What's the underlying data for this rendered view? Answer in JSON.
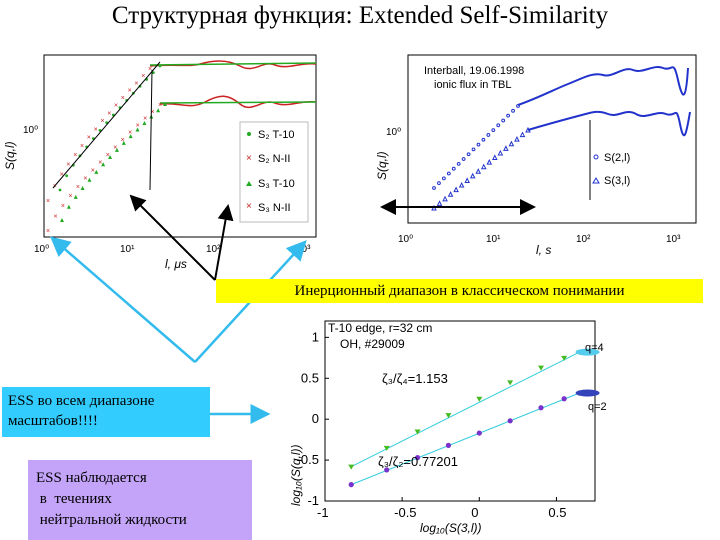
{
  "title": "Структурная функция: Extended Self-Similarity",
  "inertial_label": "Инерционный диапазон в классическом понимании",
  "ess_full_lines": [
    "ESS во всем диапазоне",
    "масштабов!!!!"
  ],
  "ess_neutral_lines": [
    "ESS наблюдается",
    " в  течениях",
    " нейтральной жидкости"
  ],
  "chart_data": [
    {
      "type": "scatter",
      "ylabel": "S(q,l)",
      "xlabel": "l, μs",
      "xscale": "log",
      "xticks": [
        "10⁰",
        "10¹",
        "10²",
        "10³"
      ],
      "yticks": [
        "10⁰"
      ],
      "legend_position": "right",
      "series": [
        {
          "name": "S₂ T-10",
          "color": "#22aa22",
          "marker": "circle"
        },
        {
          "name": "S₂ N-II",
          "color": "#cc2222",
          "marker": "x"
        },
        {
          "name": "S₃ T-10",
          "color": "#22aa22",
          "marker": "triangle"
        },
        {
          "name": "S₃ N-II",
          "color": "#cc2222",
          "marker": "x"
        }
      ]
    },
    {
      "type": "scatter",
      "ylabel": "S(q,l)",
      "xlabel": "l, s",
      "xscale": "log",
      "xticks": [
        "10⁰",
        "10¹",
        "10²",
        "10³"
      ],
      "yticks": [
        "10⁰"
      ],
      "annotation_lines": [
        "Interball, 19.06.1998",
        "ionic flux in TBL"
      ],
      "legend_position": "right",
      "series": [
        {
          "name": "S(2,l)",
          "color": "#2233cc",
          "marker": "circle"
        },
        {
          "name": "S(3,l)",
          "color": "#2233cc",
          "marker": "triangle"
        }
      ]
    },
    {
      "type": "scatter",
      "ylabel": "log₁₀(S(q,l))",
      "xlabel": "log₁₀(S(3,l))",
      "xlim": [
        -1,
        0.75
      ],
      "ylim": [
        -1,
        1.2
      ],
      "xticks": [
        "-1",
        "-0.5",
        "0",
        "0.5"
      ],
      "yticks": [
        "1",
        "0.5",
        "0",
        "-0.5",
        "-1"
      ],
      "annotation_lines": [
        "T-10 edge, r=32 cm",
        "OH, #29009"
      ],
      "series": [
        {
          "name": "q=4",
          "color": "#44bb22",
          "fit_label": "ζ₃/ζ₄=1.153",
          "x": [
            -0.83,
            -0.6,
            -0.4,
            -0.2,
            0.0,
            0.2,
            0.4,
            0.55,
            0.65
          ],
          "y": [
            -0.58,
            -0.35,
            -0.15,
            0.05,
            0.25,
            0.45,
            0.63,
            0.75,
            0.82
          ]
        },
        {
          "name": "q=2",
          "color": "#7733cc",
          "fit_label": "ζ₃/ζ₂=0.77201",
          "x": [
            -0.83,
            -0.6,
            -0.4,
            -0.2,
            0.0,
            0.2,
            0.4,
            0.55,
            0.65
          ],
          "y": [
            -0.8,
            -0.62,
            -0.47,
            -0.32,
            -0.17,
            -0.02,
            0.14,
            0.25,
            0.32
          ]
        }
      ]
    }
  ]
}
